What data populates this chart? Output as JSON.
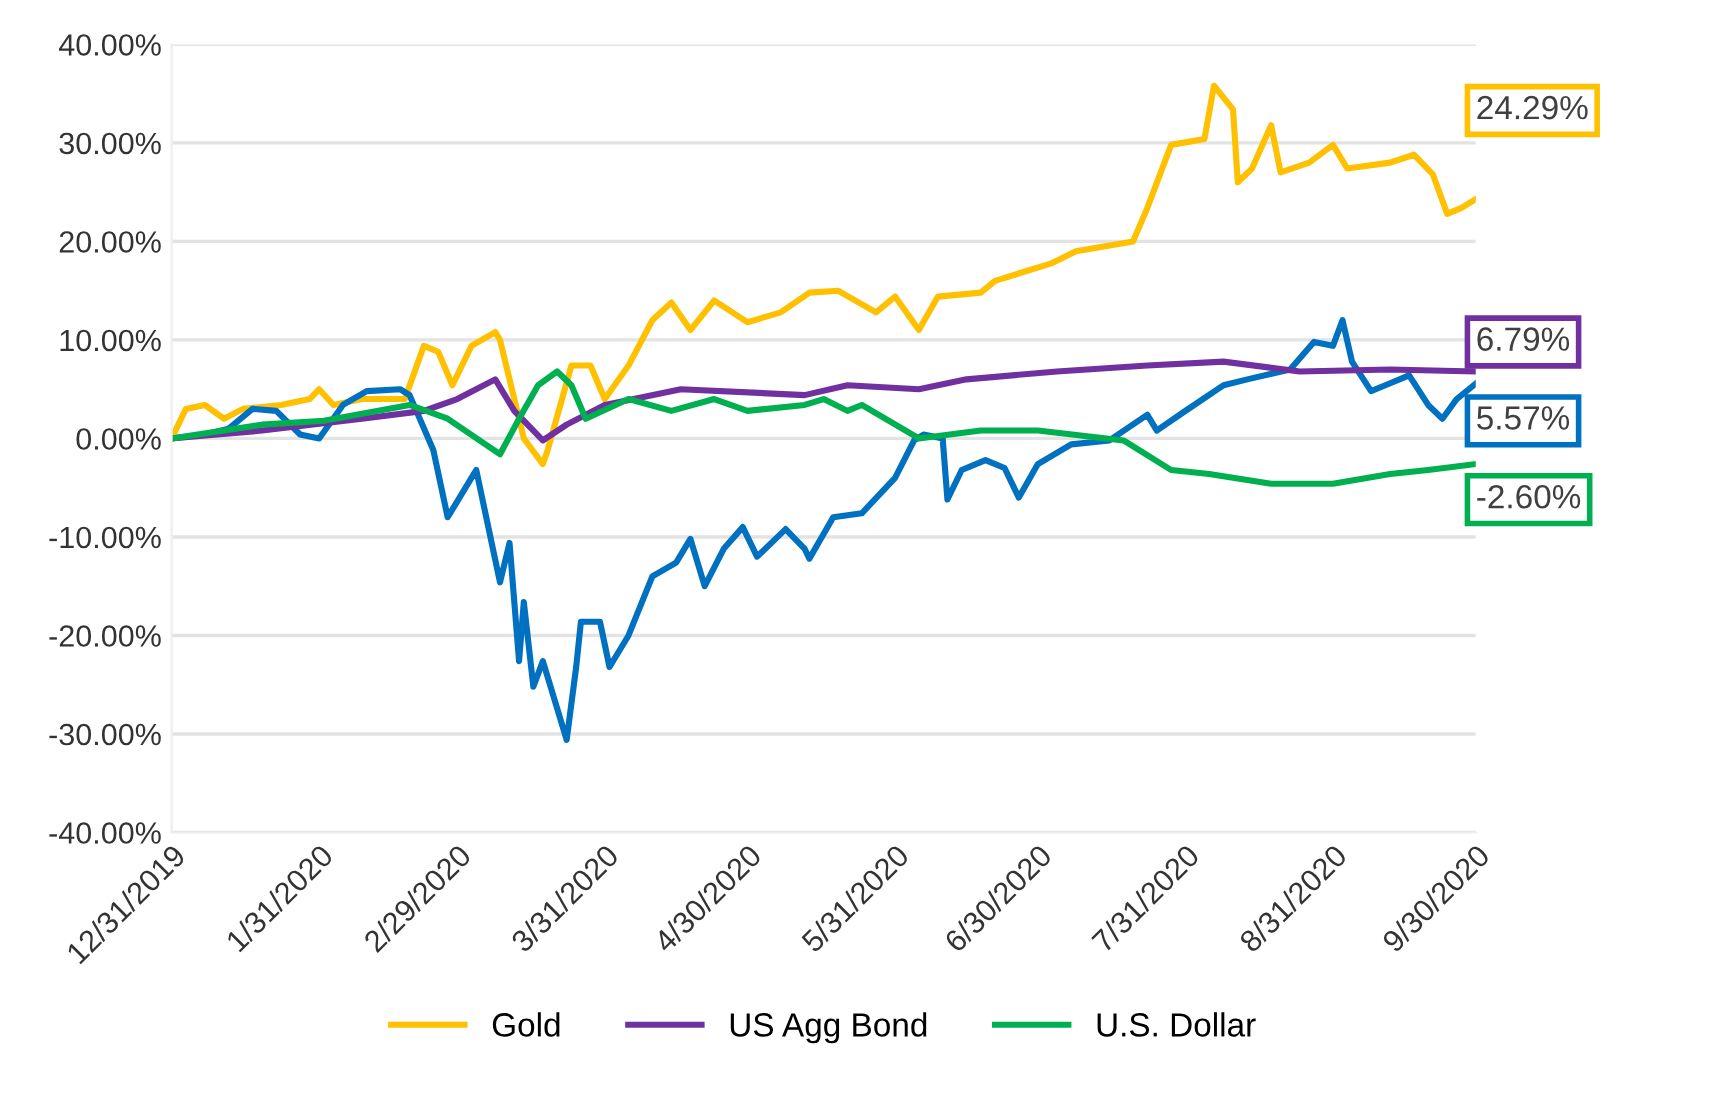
{
  "chart_data": {
    "type": "line",
    "legend": "bottom",
    "grid": "y",
    "line_style": "solid",
    "marker": "none",
    "xlim": [
      "2019-12-31",
      "2020-09-30"
    ],
    "xticks": [
      {
        "value": "2019-12-31",
        "label": "12/31/2019"
      },
      {
        "value": "2020-01-31",
        "label": "1/31/2020"
      },
      {
        "value": "2020-02-29",
        "label": "2/29/2020"
      },
      {
        "value": "2020-03-31",
        "label": "3/31/2020"
      },
      {
        "value": "2020-04-30",
        "label": "4/30/2020"
      },
      {
        "value": "2020-05-31",
        "label": "5/31/2020"
      },
      {
        "value": "2020-06-30",
        "label": "6/30/2020"
      },
      {
        "value": "2020-07-31",
        "label": "7/31/2020"
      },
      {
        "value": "2020-08-31",
        "label": "8/31/2020"
      },
      {
        "value": "2020-09-30",
        "label": "9/30/2020"
      }
    ],
    "ylim": [
      -40,
      40
    ],
    "yticks": [
      {
        "value": 40,
        "label": "40.00%"
      },
      {
        "value": 30,
        "label": "30.00%"
      },
      {
        "value": 20,
        "label": "20.00%"
      },
      {
        "value": 10,
        "label": "10.00%"
      },
      {
        "value": 0,
        "label": "0.00%"
      },
      {
        "value": -10,
        "label": "-10.00%"
      },
      {
        "value": -20,
        "label": "-20.00%"
      },
      {
        "value": -30,
        "label": "-30.00%"
      },
      {
        "value": -40,
        "label": "-40.00%"
      }
    ],
    "series": [
      {
        "name": "Gold",
        "color": "#ffc000",
        "x": [
          "2019-12-31",
          "2020-01-03",
          "2020-01-07",
          "2020-01-11",
          "2020-01-15",
          "2020-01-23",
          "2020-01-29",
          "2020-01-31",
          "2020-02-03",
          "2020-02-09",
          "2020-02-18",
          "2020-02-22",
          "2020-02-25",
          "2020-02-28",
          "2020-03-03",
          "2020-03-08",
          "2020-03-09",
          "2020-03-14",
          "2020-03-18",
          "2020-03-19",
          "2020-03-24",
          "2020-03-28",
          "2020-03-31",
          "2020-04-05",
          "2020-04-10",
          "2020-04-14",
          "2020-04-18",
          "2020-04-23",
          "2020-04-30",
          "2020-05-07",
          "2020-05-13",
          "2020-05-19",
          "2020-05-27",
          "2020-05-31",
          "2020-06-05",
          "2020-06-09",
          "2020-06-18",
          "2020-06-21",
          "2020-07-03",
          "2020-07-08",
          "2020-07-20",
          "2020-07-23",
          "2020-07-28",
          "2020-08-04",
          "2020-08-06",
          "2020-08-10",
          "2020-08-11",
          "2020-08-14",
          "2020-08-18",
          "2020-08-20",
          "2020-08-26",
          "2020-08-31",
          "2020-09-03",
          "2020-09-12",
          "2020-09-17",
          "2020-09-21",
          "2020-09-24",
          "2020-09-27",
          "2020-09-30"
        ],
        "values": [
          0,
          3,
          3.4,
          2,
          3,
          3.4,
          4,
          5,
          3.4,
          4,
          4,
          9.4,
          8.8,
          5.4,
          9.4,
          10.8,
          10,
          0,
          -2.6,
          -1.2,
          7.4,
          7.4,
          4,
          7.4,
          12,
          13.8,
          11,
          14,
          11.8,
          12.8,
          14.8,
          15,
          12.8,
          14.4,
          11,
          14.4,
          14.8,
          16,
          17.8,
          19,
          20,
          23.4,
          29.8,
          30.4,
          35.8,
          33.4,
          26,
          27.4,
          31.8,
          27,
          28,
          29.8,
          27.4,
          28,
          28.8,
          26.8,
          22.8,
          23.4,
          24.29
        ]
      },
      {
        "color": "#0070c0",
        "x": [
          "2019-12-31",
          "2020-01-07",
          "2020-01-12",
          "2020-01-17",
          "2020-01-22",
          "2020-01-27",
          "2020-01-31",
          "2020-02-05",
          "2020-02-10",
          "2020-02-17",
          "2020-02-19",
          "2020-02-24",
          "2020-02-27",
          "2020-03-03",
          "2020-03-04",
          "2020-03-09",
          "2020-03-11",
          "2020-03-13",
          "2020-03-14",
          "2020-03-16",
          "2020-03-18",
          "2020-03-23",
          "2020-03-25",
          "2020-03-26",
          "2020-03-30",
          "2020-04-01",
          "2020-04-05",
          "2020-04-10",
          "2020-04-15",
          "2020-04-18",
          "2020-04-21",
          "2020-04-25",
          "2020-04-29",
          "2020-05-02",
          "2020-05-08",
          "2020-05-12",
          "2020-05-13",
          "2020-05-18",
          "2020-05-24",
          "2020-05-31",
          "2020-06-04",
          "2020-06-06",
          "2020-06-10",
          "2020-06-11",
          "2020-06-14",
          "2020-06-19",
          "2020-06-23",
          "2020-06-26",
          "2020-06-30",
          "2020-07-07",
          "2020-07-15",
          "2020-07-23",
          "2020-07-25",
          "2020-07-31",
          "2020-08-08",
          "2020-08-13",
          "2020-08-22",
          "2020-08-27",
          "2020-08-31",
          "2020-09-02",
          "2020-09-04",
          "2020-09-08",
          "2020-09-11",
          "2020-09-16",
          "2020-09-20",
          "2020-09-23",
          "2020-09-26",
          "2020-09-30"
        ],
        "values": [
          0,
          0.4,
          1,
          3,
          2.8,
          0.4,
          0,
          3.4,
          4.8,
          5,
          4.4,
          -1.2,
          -8,
          -4,
          -3.2,
          -14.6,
          -10.6,
          -22.6,
          -16.6,
          -25.2,
          -22.6,
          -30.6,
          -23.2,
          -18.6,
          -18.6,
          -23.2,
          -20,
          -14,
          -12.6,
          -10.2,
          -15,
          -11.2,
          -9,
          -12,
          -9.2,
          -11.2,
          -12.2,
          -8,
          -7.6,
          -4,
          -0.2,
          0.4,
          0,
          -6.2,
          -3.2,
          -2.2,
          -3,
          -6,
          -2.6,
          -0.6,
          -0.2,
          2.4,
          0.8,
          2.8,
          5.4,
          6,
          7,
          9.8,
          9.4,
          12,
          7.8,
          4.8,
          5.4,
          6.4,
          3.4,
          2,
          4,
          5.57
        ]
      },
      {
        "name": "US Agg Bond",
        "color": "#7030a0",
        "x": [
          "2019-12-31",
          "2020-01-19",
          "2020-02-09",
          "2020-02-22",
          "2020-02-29",
          "2020-03-08",
          "2020-03-12",
          "2020-03-18",
          "2020-03-23",
          "2020-03-31",
          "2020-04-16",
          "2020-05-12",
          "2020-05-21",
          "2020-06-05",
          "2020-06-15",
          "2020-07-04",
          "2020-07-23",
          "2020-08-08",
          "2020-08-24",
          "2020-09-12",
          "2020-09-30"
        ],
        "values": [
          0,
          0.8,
          2,
          2.8,
          4,
          6,
          2.8,
          -0.2,
          1.4,
          3.4,
          5,
          4.4,
          5.4,
          5,
          6,
          6.8,
          7.4,
          7.8,
          6.8,
          7,
          6.79
        ]
      },
      {
        "name": "U.S. Dollar",
        "color": "#00b050",
        "x": [
          "2019-12-31",
          "2020-01-19",
          "2020-02-01",
          "2020-02-19",
          "2020-02-27",
          "2020-03-09",
          "2020-03-13",
          "2020-03-17",
          "2020-03-21",
          "2020-03-24",
          "2020-03-27",
          "2020-04-05",
          "2020-04-14",
          "2020-04-23",
          "2020-04-30",
          "2020-05-12",
          "2020-05-16",
          "2020-05-21",
          "2020-05-24",
          "2020-06-05",
          "2020-06-18",
          "2020-06-30",
          "2020-07-18",
          "2020-07-28",
          "2020-08-05",
          "2020-08-18",
          "2020-08-31",
          "2020-09-12",
          "2020-09-20",
          "2020-09-30"
        ],
        "values": [
          0,
          1.4,
          1.8,
          3.4,
          2,
          -1.6,
          2,
          5.4,
          6.8,
          5.4,
          2,
          4,
          2.8,
          4,
          2.8,
          3.4,
          4,
          2.8,
          3.4,
          0,
          0.8,
          0.8,
          -0.2,
          -3.2,
          -3.6,
          -4.6,
          -4.6,
          -3.6,
          -3.2,
          -2.6
        ]
      }
    ],
    "annotations": [
      {
        "text": "24.29%",
        "x": "2020-09-30",
        "y": 24.29
      },
      {
        "text": "6.79%",
        "x": "2020-09-30",
        "y": 6.79
      },
      {
        "text": "5.57%",
        "x": "2020-09-30",
        "y": 5.57
      },
      {
        "text": "-2.60%",
        "x": "2020-09-30",
        "y": -2.6
      }
    ]
  }
}
